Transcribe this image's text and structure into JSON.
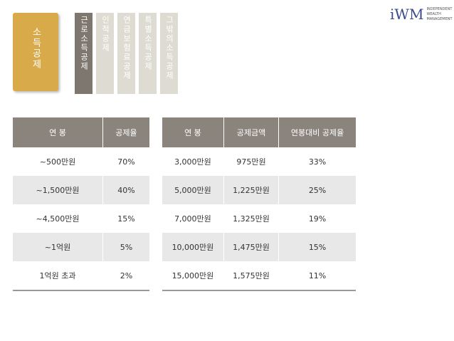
{
  "logo": {
    "mark": "iWM",
    "lines": [
      "INDEPENDENT",
      "WEALTH",
      "MANAGEMENT"
    ]
  },
  "nav": {
    "title": "소득공제",
    "tabs": [
      "근로소득공제",
      "인적공제",
      "연금보험료공제",
      "특별소득공제",
      "그밖의소득공제"
    ]
  },
  "tables": [
    {
      "header": [
        "연 봉",
        "공제율"
      ],
      "rows": [
        [
          "~500만원",
          "70%"
        ],
        [
          "~1,500만원",
          "40%"
        ],
        [
          "~4,500만원",
          "15%"
        ],
        [
          "~1억원",
          "5%"
        ],
        [
          "1억원 초과",
          "2%"
        ]
      ]
    },
    {
      "header": [
        "연 봉",
        "공제금액",
        "연봉대비 공제율"
      ],
      "rows": [
        [
          "3,000만원",
          "975만원",
          "33%"
        ],
        [
          "5,000만원",
          "1,225만원",
          "25%"
        ],
        [
          "7,000만원",
          "1,325만원",
          "19%"
        ],
        [
          "10,000만원",
          "1,475만원",
          "15%"
        ],
        [
          "15,000만원",
          "1,575만원",
          "11%"
        ]
      ]
    }
  ]
}
